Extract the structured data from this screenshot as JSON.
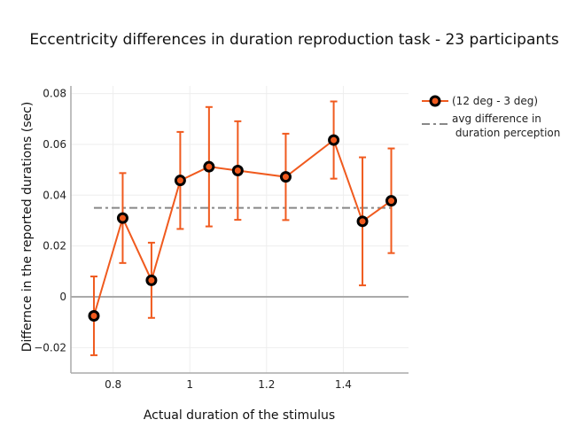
{
  "chart_data": {
    "type": "line",
    "title": "Eccentricity differences in duration reproduction task - 23 participants",
    "xlabel": "Actual duration of the stimulus",
    "ylabel": "Differnce in the reported durations (sec)",
    "xlim": [
      0.69,
      1.57
    ],
    "ylim": [
      -0.03,
      0.083
    ],
    "x_ticks": [
      0.8,
      1,
      1.2,
      1.4
    ],
    "x_tick_labels": [
      "0.8",
      "1",
      "1.2",
      "1.4"
    ],
    "y_ticks": [
      -0.02,
      0,
      0.02,
      0.04,
      0.06,
      0.08
    ],
    "y_tick_labels": [
      "−0.02",
      "0",
      "0.02",
      "0.04",
      "0.06",
      "0.08"
    ],
    "grid": true,
    "legend_position": "top-right outside",
    "series": [
      {
        "name": "(12 deg - 3 deg)",
        "color": "#f05a1e",
        "marker_edge_color": "#000000",
        "x": [
          0.75,
          0.825,
          0.9,
          0.975,
          1.05,
          1.125,
          1.25,
          1.375,
          1.45,
          1.525
        ],
        "y": [
          -0.0075,
          0.031,
          0.0065,
          0.0458,
          0.0512,
          0.0497,
          0.0472,
          0.0617,
          0.0297,
          0.0378
        ],
        "error": [
          0.0155,
          0.0177,
          0.0148,
          0.0191,
          0.0235,
          0.0194,
          0.017,
          0.0152,
          0.0252,
          0.0206
        ]
      },
      {
        "name": "avg difference in\n duration perception",
        "color": "#888888",
        "style": "dash-dot",
        "x": [
          0.75,
          1.525
        ],
        "y": [
          0.035,
          0.035
        ]
      }
    ]
  }
}
